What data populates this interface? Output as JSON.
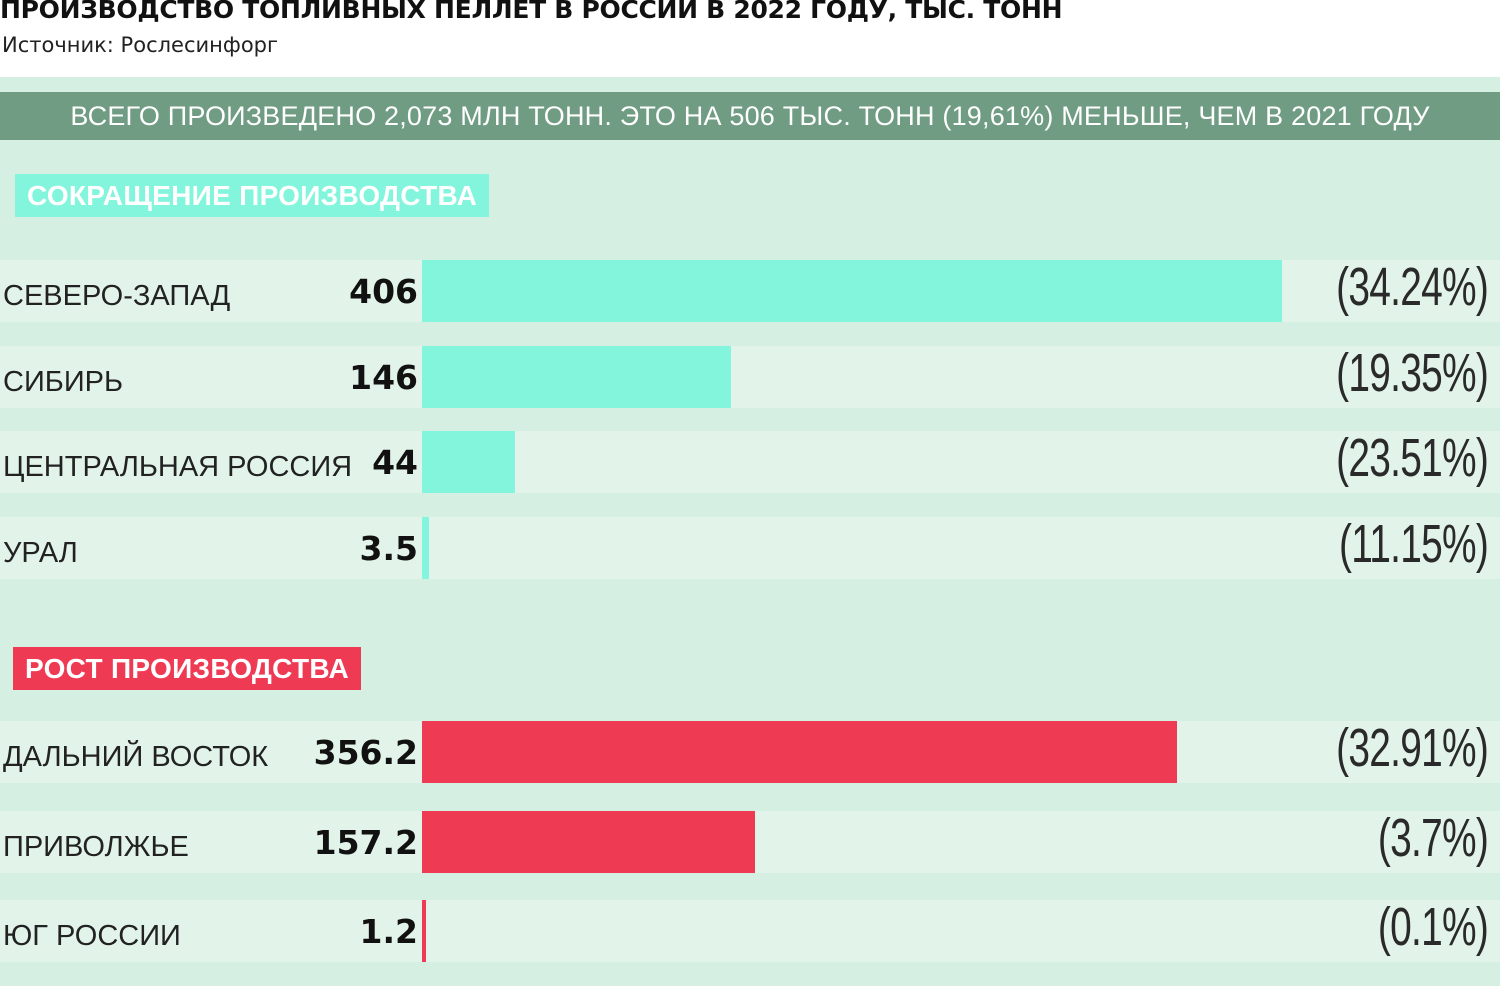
{
  "header": {
    "title": "ПРОИЗВОДСТВО ТОПЛИВНЫХ ПЕЛЛЕТ В РОССИИ В 2022 ГОДУ, ТЫС. ТОНН",
    "source": "Источник: Рослесинфорг"
  },
  "banner": "ВСЕГО ПРОИЗВЕДЕНО 2,073 МЛН ТОНН. ЭТО НА 506 ТЫС. ТОНН (19,61%) МЕНЬШЕ, ЧЕМ В 2021 ГОДУ",
  "colors": {
    "decrease": "#84f5dd",
    "increase": "#ef3a54",
    "background": "#d5efe2",
    "banner": "#6f9c83"
  },
  "chart_data": {
    "type": "bar",
    "orientation": "horizontal",
    "title": "ПРОИЗВОДСТВО ТОПЛИВНЫХ ПЕЛЛЕТ В РОССИИ В 2022 ГОДУ, ТЫС. ТОНН",
    "xlim": [
      0,
      406
    ],
    "groups": [
      {
        "label": "СОКРАЩЕНИЕ ПРОИЗВОДСТВА",
        "key": "decrease",
        "items": [
          {
            "region": "СЕВЕРО-ЗАПАД",
            "value": 406,
            "value_label": "406",
            "change": "(34.24%)"
          },
          {
            "region": "СИБИРЬ",
            "value": 146,
            "value_label": "146",
            "change": "(19.35%)"
          },
          {
            "region": "ЦЕНТРАЛЬНАЯ РОССИЯ",
            "value": 44,
            "value_label": "44",
            "change": "(23.51%)"
          },
          {
            "region": "УРАЛ",
            "value": 3.5,
            "value_label": "3.5",
            "change": "(11.15%)"
          }
        ]
      },
      {
        "label": "РОСТ ПРОИЗВОДСТВА",
        "key": "increase",
        "items": [
          {
            "region": "ДАЛЬНИЙ ВОСТОК",
            "value": 356.2,
            "value_label": "356.2",
            "change": "(32.91%)"
          },
          {
            "region": "ПРИВОЛЖЬЕ",
            "value": 157.2,
            "value_label": "157.2",
            "change": "(3.7%)"
          },
          {
            "region": "ЮГ РОССИИ",
            "value": 1.2,
            "value_label": "1.2",
            "change": "(0.1%)"
          }
        ]
      }
    ]
  }
}
